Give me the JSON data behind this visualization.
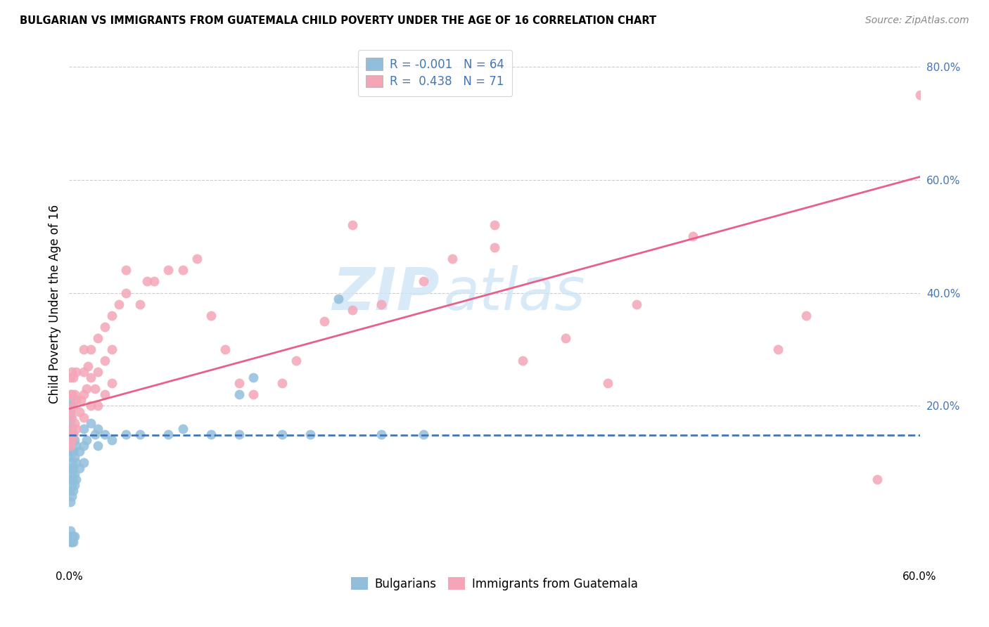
{
  "title": "BULGARIAN VS IMMIGRANTS FROM GUATEMALA CHILD POVERTY UNDER THE AGE OF 16 CORRELATION CHART",
  "source": "Source: ZipAtlas.com",
  "ylabel": "Child Poverty Under the Age of 16",
  "xlim": [
    0.0,
    0.6
  ],
  "ylim": [
    -0.08,
    0.84
  ],
  "x_ticks": [
    0.0,
    0.1,
    0.2,
    0.3,
    0.4,
    0.5,
    0.6
  ],
  "x_tick_labels": [
    "0.0%",
    "",
    "",
    "",
    "",
    "",
    "60.0%"
  ],
  "y_ticks_right": [
    0.2,
    0.4,
    0.6,
    0.8
  ],
  "y_tick_labels_right": [
    "20.0%",
    "40.0%",
    "60.0%",
    "80.0%"
  ],
  "color_bulgarian": "#91bfdb",
  "color_guatemalan": "#f4a6b8",
  "color_line_bulgarian": "#4575b4",
  "color_line_guatemalan": "#e8608a",
  "watermark_text": "ZIP",
  "watermark_text2": "atlas",
  "bulg_line_x": [
    0.0,
    0.6
  ],
  "bulg_line_y": [
    0.148,
    0.148
  ],
  "guat_line_x": [
    0.0,
    0.6
  ],
  "guat_line_y": [
    0.195,
    0.605
  ],
  "bulgarians_x": [
    0.001,
    0.001,
    0.001,
    0.001,
    0.001,
    0.001,
    0.001,
    0.001,
    0.002,
    0.002,
    0.002,
    0.002,
    0.002,
    0.002,
    0.002,
    0.003,
    0.003,
    0.003,
    0.003,
    0.003,
    0.004,
    0.004,
    0.004,
    0.004,
    0.005,
    0.005,
    0.005,
    0.007,
    0.007,
    0.01,
    0.01,
    0.01,
    0.012,
    0.015,
    0.018,
    0.02,
    0.02,
    0.025,
    0.03,
    0.04,
    0.05,
    0.07,
    0.08,
    0.1,
    0.12,
    0.15,
    0.17,
    0.19,
    0.22,
    0.25,
    0.12,
    0.13,
    0.001,
    0.001,
    0.001,
    0.002,
    0.002,
    0.003,
    0.003,
    0.004,
    0.001,
    0.001,
    0.001,
    0.001
  ],
  "bulgarians_y": [
    0.03,
    0.05,
    0.07,
    0.09,
    0.11,
    0.13,
    0.15,
    0.17,
    0.04,
    0.06,
    0.08,
    0.1,
    0.12,
    0.14,
    0.16,
    0.05,
    0.07,
    0.09,
    0.12,
    0.15,
    0.06,
    0.08,
    0.11,
    0.14,
    0.07,
    0.1,
    0.13,
    0.09,
    0.12,
    0.1,
    0.13,
    0.16,
    0.14,
    0.17,
    0.15,
    0.13,
    0.16,
    0.15,
    0.14,
    0.15,
    0.15,
    0.15,
    0.16,
    0.15,
    0.15,
    0.15,
    0.15,
    0.39,
    0.15,
    0.15,
    0.22,
    0.25,
    -0.04,
    -0.03,
    -0.02,
    -0.04,
    -0.03,
    -0.03,
    -0.04,
    -0.03,
    0.18,
    0.2,
    0.19,
    0.21
  ],
  "guatemalans_x": [
    0.001,
    0.001,
    0.001,
    0.001,
    0.001,
    0.002,
    0.002,
    0.002,
    0.002,
    0.003,
    0.003,
    0.003,
    0.004,
    0.004,
    0.005,
    0.005,
    0.005,
    0.007,
    0.008,
    0.01,
    0.01,
    0.01,
    0.01,
    0.012,
    0.013,
    0.015,
    0.015,
    0.015,
    0.018,
    0.02,
    0.02,
    0.02,
    0.025,
    0.025,
    0.025,
    0.03,
    0.03,
    0.03,
    0.035,
    0.04,
    0.04,
    0.05,
    0.055,
    0.06,
    0.07,
    0.08,
    0.09,
    0.1,
    0.11,
    0.12,
    0.13,
    0.15,
    0.16,
    0.18,
    0.2,
    0.22,
    0.25,
    0.27,
    0.3,
    0.32,
    0.35,
    0.38,
    0.4,
    0.44,
    0.5,
    0.52,
    0.57,
    0.6,
    0.3,
    0.2
  ],
  "guatemalans_y": [
    0.13,
    0.16,
    0.19,
    0.22,
    0.25,
    0.14,
    0.18,
    0.22,
    0.26,
    0.15,
    0.2,
    0.25,
    0.17,
    0.22,
    0.16,
    0.21,
    0.26,
    0.19,
    0.21,
    0.18,
    0.22,
    0.26,
    0.3,
    0.23,
    0.27,
    0.2,
    0.25,
    0.3,
    0.23,
    0.2,
    0.26,
    0.32,
    0.22,
    0.28,
    0.34,
    0.24,
    0.3,
    0.36,
    0.38,
    0.4,
    0.44,
    0.38,
    0.42,
    0.42,
    0.44,
    0.44,
    0.46,
    0.36,
    0.3,
    0.24,
    0.22,
    0.24,
    0.28,
    0.35,
    0.37,
    0.38,
    0.42,
    0.46,
    0.48,
    0.28,
    0.32,
    0.24,
    0.38,
    0.5,
    0.3,
    0.36,
    0.07,
    0.75,
    0.52,
    0.52
  ]
}
